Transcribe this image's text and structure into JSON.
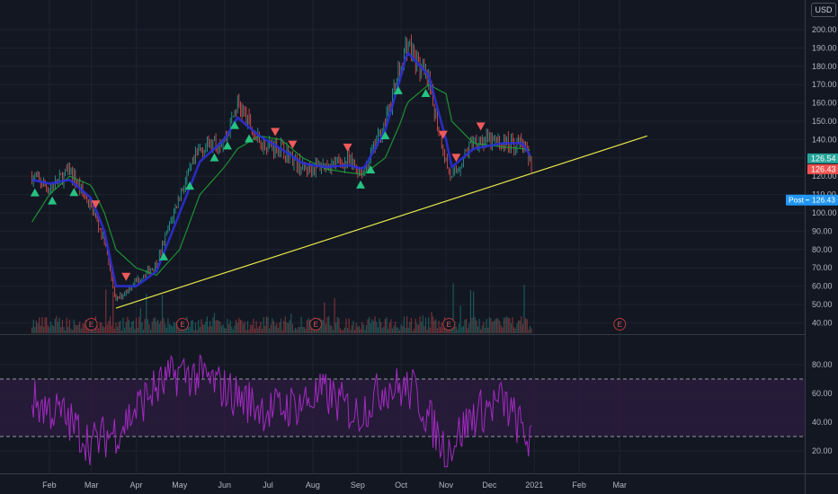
{
  "currency": "USD",
  "price_axis": {
    "ticks": [
      200,
      190,
      180,
      170,
      160,
      150,
      140,
      130,
      120,
      110,
      100,
      90,
      80,
      70,
      60,
      50,
      40
    ],
    "tick_labels": [
      "200.00",
      "190.00",
      "180.00",
      "170.00",
      "160.00",
      "150.00",
      "140.00",
      "130.00",
      "120.00",
      "110.00",
      "100.00",
      "90.00",
      "80.00",
      "70.00",
      "60.00",
      "50.00",
      "40.00"
    ],
    "last_close_label": "126.54",
    "current_label": "126.43",
    "post_tag": "Post",
    "post_value": "126.43"
  },
  "rsi_axis": {
    "ticks": [
      80,
      60,
      40,
      20
    ],
    "tick_labels": [
      "80.00",
      "60.00",
      "40.00",
      "20.00"
    ],
    "upper_band": 70,
    "lower_band": 30
  },
  "time_axis": {
    "labels": [
      "Feb",
      "Mar",
      "Apr",
      "May",
      "Jun",
      "Jul",
      "Aug",
      "Sep",
      "Oct",
      "Nov",
      "Dec",
      "2021",
      "Feb",
      "Mar"
    ]
  },
  "earnings_marker": "E",
  "colors": {
    "background": "#131722",
    "up": "#26a69a",
    "down": "#ef5350",
    "ma_fast": "#2b2fd6",
    "ma_slow": "#1e9e33",
    "trendline": "#e8e84a",
    "rsi": "#a32ac2",
    "rsi_band": "#2a1b3d",
    "post_badge": "#2196f3"
  },
  "chart_data": [
    {
      "type": "line",
      "title": "",
      "y_scale": "linear",
      "ylim": [
        35,
        205
      ],
      "grid": true,
      "x": [
        "2020-01-20",
        "2020-02-01",
        "2020-02-15",
        "2020-03-01",
        "2020-03-10",
        "2020-03-18",
        "2020-04-01",
        "2020-04-15",
        "2020-05-01",
        "2020-05-15",
        "2020-06-01",
        "2020-06-10",
        "2020-06-25",
        "2020-07-10",
        "2020-07-25",
        "2020-08-10",
        "2020-08-25",
        "2020-09-05",
        "2020-09-20",
        "2020-10-01",
        "2020-10-05",
        "2020-10-20",
        "2020-11-01",
        "2020-11-05",
        "2020-11-20",
        "2020-12-10",
        "2020-12-24",
        "2020-12-30"
      ],
      "series": [
        {
          "kind": "price",
          "values": [
            120,
            113,
            123,
            103,
            85,
            52,
            63,
            72,
            110,
            135,
            140,
            160,
            138,
            136,
            124,
            126,
            128,
            122,
            150,
            180,
            193,
            170,
            128,
            118,
            140,
            138,
            138,
            124
          ]
        },
        {
          "kind": "ma_fast",
          "values": [
            118,
            116,
            118,
            108,
            90,
            60,
            60,
            68,
            100,
            128,
            140,
            152,
            142,
            135,
            127,
            125,
            126,
            124,
            145,
            175,
            188,
            175,
            140,
            125,
            135,
            138,
            138,
            130
          ]
        },
        {
          "kind": "ma_slow",
          "values": [
            95,
            110,
            120,
            115,
            100,
            80,
            70,
            66,
            80,
            110,
            125,
            135,
            142,
            140,
            130,
            124,
            122,
            121,
            130,
            150,
            160,
            170,
            165,
            150,
            138,
            136,
            135,
            134
          ]
        },
        {
          "kind": "trendline",
          "x": [
            "2020-03-18",
            "2021-03-20"
          ],
          "values": [
            48,
            142
          ]
        }
      ],
      "signals": [
        {
          "date": "2020-01-22",
          "type": "buy"
        },
        {
          "date": "2020-02-03",
          "type": "buy"
        },
        {
          "date": "2020-02-18",
          "type": "buy"
        },
        {
          "date": "2020-03-04",
          "type": "sell"
        },
        {
          "date": "2020-03-25",
          "type": "sell"
        },
        {
          "date": "2020-04-20",
          "type": "buy"
        },
        {
          "date": "2020-05-08",
          "type": "buy"
        },
        {
          "date": "2020-05-25",
          "type": "buy"
        },
        {
          "date": "2020-06-03",
          "type": "buy"
        },
        {
          "date": "2020-06-08",
          "type": "buy"
        },
        {
          "date": "2020-06-18",
          "type": "buy"
        },
        {
          "date": "2020-07-06",
          "type": "sell"
        },
        {
          "date": "2020-07-18",
          "type": "sell"
        },
        {
          "date": "2020-08-25",
          "type": "sell"
        },
        {
          "date": "2020-09-03",
          "type": "buy"
        },
        {
          "date": "2020-09-10",
          "type": "buy"
        },
        {
          "date": "2020-09-20",
          "type": "buy"
        },
        {
          "date": "2020-09-29",
          "type": "buy"
        },
        {
          "date": "2020-10-18",
          "type": "buy"
        },
        {
          "date": "2020-10-30",
          "type": "sell"
        },
        {
          "date": "2020-11-08",
          "type": "sell"
        },
        {
          "date": "2020-11-25",
          "type": "sell"
        }
      ],
      "earnings_dates": [
        "2020-03-01",
        "2020-05-03",
        "2020-08-03",
        "2020-11-03",
        "2021-03-01"
      ]
    },
    {
      "type": "line",
      "title": "",
      "ylim": [
        8,
        92
      ],
      "bands": [
        30,
        70
      ],
      "x": [
        "2020-01-20",
        "2020-02-10",
        "2020-03-01",
        "2020-03-20",
        "2020-04-10",
        "2020-05-01",
        "2020-05-20",
        "2020-06-10",
        "2020-07-01",
        "2020-07-20",
        "2020-08-10",
        "2020-09-01",
        "2020-09-20",
        "2020-10-10",
        "2020-11-01",
        "2020-11-20",
        "2020-12-10",
        "2020-12-30"
      ],
      "values": [
        55,
        45,
        25,
        35,
        60,
        75,
        70,
        58,
        48,
        52,
        60,
        45,
        65,
        62,
        20,
        45,
        55,
        25
      ]
    }
  ]
}
